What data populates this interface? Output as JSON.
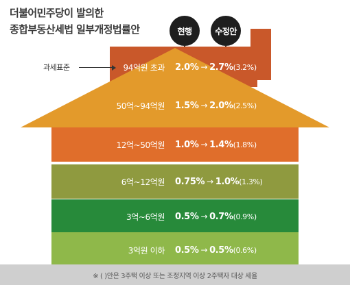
{
  "title": {
    "line1": "더불어민주당이 발의한",
    "line2": "종합부동산세법 일부개정법률안"
  },
  "legend": {
    "current": "현행",
    "revised": "수정안"
  },
  "callout": "과세표준",
  "arrow_symbol": "→",
  "rows": [
    {
      "bracket": "94억원 초과",
      "current": "2.0%",
      "revised": "2.7%",
      "alt": "(3.2%)",
      "color": "#c9582a"
    },
    {
      "bracket": "50억~94억원",
      "current": "1.5%",
      "revised": "2.0%",
      "alt": "(2.5%)",
      "color": "#e39a2b"
    },
    {
      "bracket": "12억~50억원",
      "current": "1.0%",
      "revised": "1.4%",
      "alt": "(1.8%)",
      "color": "#e06e2b"
    },
    {
      "bracket": "6억~12억원",
      "current": "0.75%",
      "revised": "1.0%",
      "alt": "(1.3%)",
      "color": "#8f9a3f"
    },
    {
      "bracket": "3억~6억원",
      "current": "0.5%",
      "revised": "0.7%",
      "alt": "(0.9%)",
      "color": "#278a3a"
    },
    {
      "bracket": "3억원 이하",
      "current": "0.5%",
      "revised": "0.5%",
      "alt": "(0.6%)",
      "color": "#8fb84a"
    }
  ],
  "footer": "※ (   )안은 3주택 이상 또는 조정지역 이상 2주택자 대상 세율"
}
